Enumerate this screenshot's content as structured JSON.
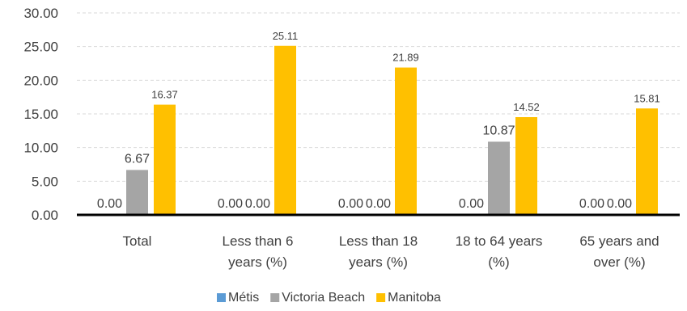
{
  "chart_data": {
    "type": "bar",
    "categories": [
      [
        "Total"
      ],
      [
        "Less than 6",
        "years (%)"
      ],
      [
        "Less than 18",
        "years (%)"
      ],
      [
        "18 to 64 years",
        "(%)"
      ],
      [
        "65 years and",
        "over (%)"
      ]
    ],
    "series": [
      {
        "name": "Métis",
        "color": "#5B9BD5",
        "values": [
          0.0,
          0.0,
          0.0,
          0.0,
          0.0
        ],
        "labels": [
          "0.00",
          "0.00",
          "0.00",
          "0.00",
          "0.00"
        ]
      },
      {
        "name": "Victoria Beach",
        "color": "#A5A5A5",
        "values": [
          6.67,
          0.0,
          0.0,
          10.87,
          0.0
        ],
        "labels": [
          "6.67",
          "0.00",
          "0.00",
          "10.87",
          "0.00"
        ]
      },
      {
        "name": "Manitoba",
        "color": "#FFC000",
        "values": [
          16.37,
          25.11,
          21.89,
          14.52,
          15.81
        ],
        "labels": [
          "16.37",
          "25.11",
          "21.89",
          "14.52",
          "15.81"
        ]
      }
    ],
    "ylim": [
      0,
      30
    ],
    "yticks": [
      "0.00",
      "5.00",
      "10.00",
      "15.00",
      "20.00",
      "25.00",
      "30.00"
    ],
    "grid": true,
    "legend_position": "bottom",
    "title": "",
    "xlabel": "",
    "ylabel": ""
  }
}
